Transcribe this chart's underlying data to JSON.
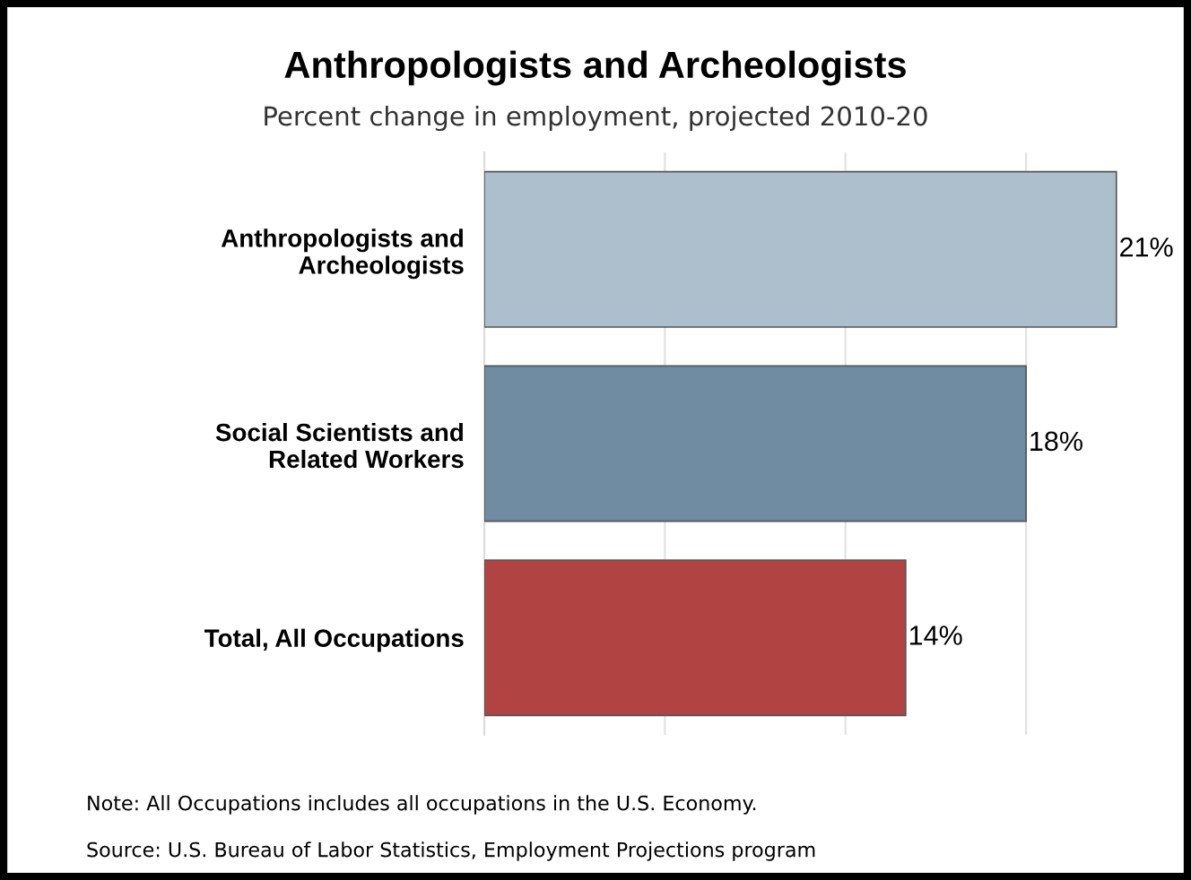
{
  "chart_data": {
    "type": "bar",
    "orientation": "horizontal",
    "title": "Anthropologists and Archeologists",
    "subtitle": "Percent change in employment, projected 2010-20",
    "categories": [
      "Anthropologists and\nArcheologists",
      "Social Scientists and\nRelated Workers",
      "Total, All Occupations"
    ],
    "values": [
      21,
      18,
      14
    ],
    "colors": [
      "#adbfcc",
      "#6f8ca3",
      "#b24343"
    ],
    "value_labels": [
      "21%",
      "18%",
      "14%"
    ],
    "xticks": [
      {
        "value": 0,
        "label": null
      },
      {
        "value": 6,
        "label": null
      },
      {
        "value": 12,
        "label": null
      },
      {
        "value": 18,
        "label": null
      }
    ],
    "grid": "x",
    "tick_labels": "y",
    "legend": false,
    "annotations": [
      "Note: All Occupations includes all occupations in the U.S. Economy.",
      "Source: U.S. Bureau of Labor Statistics, Employment Projections program"
    ]
  }
}
